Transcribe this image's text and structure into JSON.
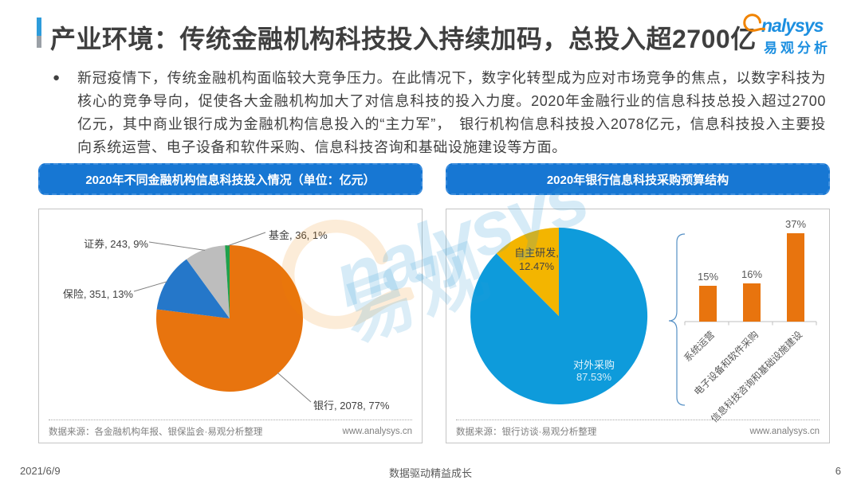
{
  "header": {
    "title": "产业环境：传统金融机构科技投入持续加码，总投入超2700亿",
    "logo": {
      "brand": "nalysys",
      "brand_cn": "易观分析"
    }
  },
  "summary": {
    "text": "新冠疫情下，传统金融机构面临较大竞争压力。在此情况下，数字化转型成为应对市场竞争的焦点，以数字科技为核心的竞争导向，促使各大金融机构加大了对信息科技的投入力度。2020年金融行业的信息科技总投入超过2700亿元，其中商业银行成为金融机构信息投入的“主力军”，　银行机构信息科技投入2078亿元，信息科技投入主要投向系统运营、电子设备和软件采购、信息科技咨询和基础设施建设等方面。"
  },
  "watermark": {
    "text": "nalysys",
    "text_cn": "易观"
  },
  "chart_data": [
    {
      "type": "pie",
      "title": "2020年不同金融机构信息科技投入情况（单位：亿元）",
      "series": [
        {
          "name": "银行",
          "value": 2078,
          "pct": 77,
          "label": "银行, 2078, 77%",
          "color": "#E8740E"
        },
        {
          "name": "保险",
          "value": 351,
          "pct": 13,
          "label": "保险, 351, 13%",
          "color": "#2577C9"
        },
        {
          "name": "证券",
          "value": 243,
          "pct": 9,
          "label": "证券, 243, 9%",
          "color": "#BDBDBD"
        },
        {
          "name": "基金",
          "value": 36,
          "pct": 1,
          "label": "基金, 36, 1%",
          "color": "#1FA14B"
        }
      ],
      "source": "数据来源：各金融机构年报、银保监会·易观分析整理",
      "website": "www.analysys.cn"
    },
    {
      "type": "pie+bar",
      "title": "2020年银行信息科技采购预算结构",
      "pie_series": [
        {
          "name": "对外采购",
          "pct": 87.53,
          "label_name": "对外采购",
          "label_pct": "87.53%",
          "color": "#0E9BDB"
        },
        {
          "name": "自主研发",
          "pct": 12.47,
          "label_name": "自主研发,",
          "label_pct": "12.47%",
          "color": "#F3B500"
        }
      ],
      "bar": {
        "categories": [
          "系统运营",
          "电子设备和软件采购",
          "信息科技咨询和基础设施建设"
        ],
        "values": [
          15,
          16,
          37
        ],
        "value_labels": [
          "15%",
          "16%",
          "37%"
        ],
        "color": "#E8740E"
      },
      "source": "数据来源：银行访谈·易观分析整理",
      "website": "www.analysys.cn"
    }
  ],
  "footer": {
    "date": "2021/6/9",
    "slogan": "数据驱动精益成长",
    "page": "6"
  }
}
